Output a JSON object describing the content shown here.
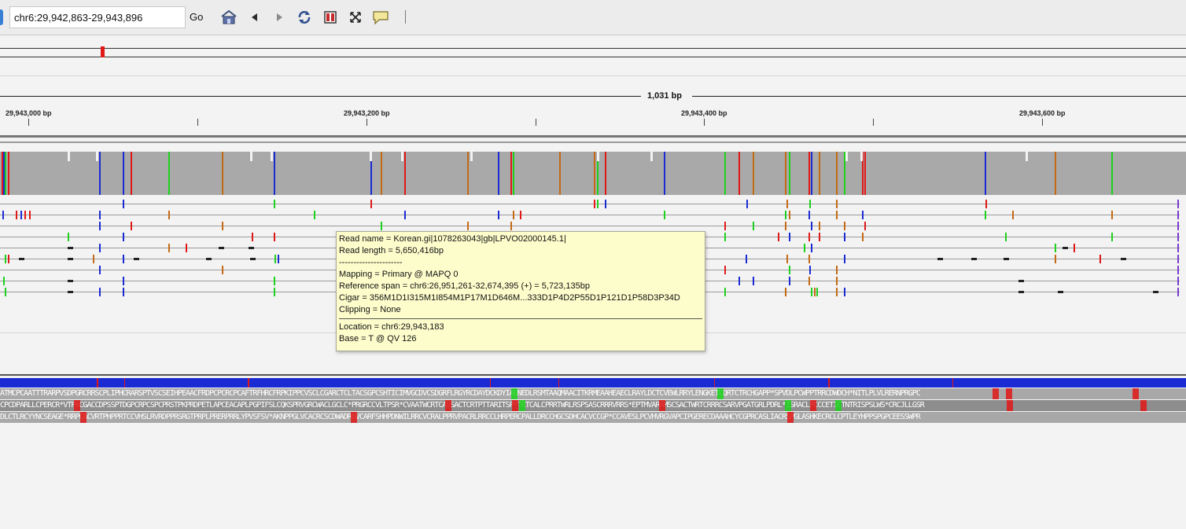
{
  "toolbar": {
    "locus": "chr6:29,942,863-29,943,896",
    "go_label": "Go",
    "icons": [
      "home-icon",
      "back-arrow-icon",
      "forward-arrow-icon",
      "refresh-icon",
      "region-of-interest-icon",
      "resize-to-window-icon",
      "popup-info-icon"
    ]
  },
  "ruler": {
    "span_label": "1,031 bp",
    "tick_labels": [
      "29,943,000 bp",
      "29,943,200 bp",
      "29,943,400 bp",
      "29,943,600 bp"
    ]
  },
  "popup": {
    "read_name": "Read name = Korean.gi|1078263043|gb|LPVO02000145.1|",
    "read_length": "Read length = 5,650,416bp",
    "divider": "----------------------",
    "mapping": "Mapping = Primary @ MAPQ 0",
    "reference_span": "Reference span = chr6:26,951,261-32,674,395 (+) = 5,723,135bp",
    "cigar": "Cigar = 356M1D1I315M1I854M1P17M1D646M...333D1P4D2P55D1P121D1P58D3P34D",
    "clipping": "Clipping = None",
    "location": "Location = chr6:29,943,183",
    "base": "Base = T @ QV 126"
  },
  "translation": {
    "frame1": "ATMCPCAATTTRARPVSDPGRCRRSCPLIPHCRARSPTVSCSEIHPEAACFRDPCPCRCPCAFTRFHRCFRPKIPPCVSCLCGARCTCLTACSGPCSHTICIMVGCDVCSDGRFLRGYRCDAYDCKDYIALNEDLRSMTAAQMAACITKRMEAAHEAECLRAYLDCTCVEWLRRYLENGKETLQRTCTRCHGAPP*SPVDLPCWPPTRRCDWDCH*NITLPLVLRERNPRGPC",
    "frame2": "CPCDPARLLCPERCR*VTPACGACCDPSSPTDGPCRPCSPCPRSTPKPRDPETLAPCEACAPLPGPIFSLCQKSPRVGRCWACLGCLC*PRGRCCVLTPSR*CVAATWCRTCASSACTCRTPTTARITSP*TRTCALCPRRTWRLRSPSASCRRRVRRS*EPTMVARAMSCSACTWRTCRRRCSARVPGATGRLPDRL*ISRACLPCCCETICTNTRISPSLWS*CRCJLLGSR",
    "frame3": "DLCTLRCYYNCSEAGE*RRPCACVRTPHPPRTCCVHSLRVRDPPRSRGTPRPLPRERPRRLYPVSFSV*AKNPPGLVCACRCSCDWADRGVCARFSHHPDNWILRRCVCRALPPRVPACRLRRCCLHRPERCPALLDRCCHGCSDHCACVCCGP*CCAVESLPCVHVRGVAPCIPGERECDAAAHCYCGPRCASLIACRSPGLASHKECRCLCPTLEYHPPSPGPCEESSWPR"
  }
}
